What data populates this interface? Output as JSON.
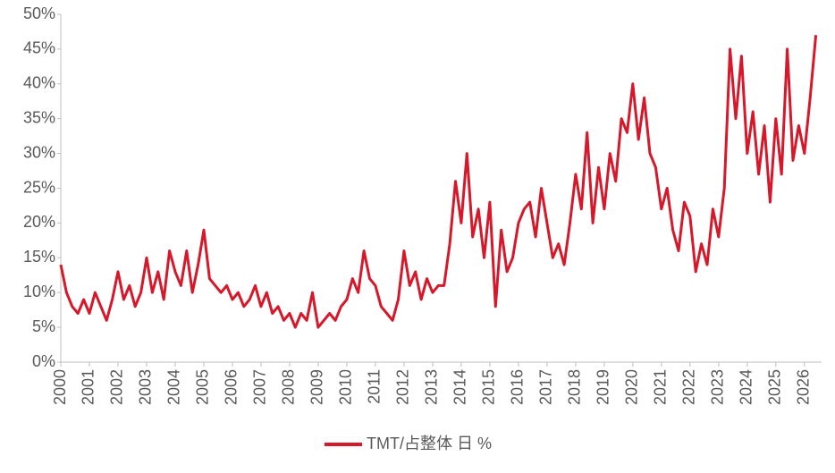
{
  "chart_data": {
    "type": "line",
    "x": [
      2000,
      2000.2,
      2000.4,
      2000.6,
      2000.8,
      2001,
      2001.2,
      2001.4,
      2001.6,
      2001.8,
      2002,
      2002.2,
      2002.4,
      2002.6,
      2002.8,
      2003,
      2003.2,
      2003.4,
      2003.6,
      2003.8,
      2004,
      2004.2,
      2004.4,
      2004.6,
      2004.8,
      2005,
      2005.2,
      2005.4,
      2005.6,
      2005.8,
      2006,
      2006.2,
      2006.4,
      2006.6,
      2006.8,
      2007,
      2007.2,
      2007.4,
      2007.6,
      2007.8,
      2008,
      2008.2,
      2008.4,
      2008.6,
      2008.8,
      2009,
      2009.2,
      2009.4,
      2009.6,
      2009.8,
      2010,
      2010.2,
      2010.4,
      2010.6,
      2010.8,
      2011,
      2011.2,
      2011.4,
      2011.6,
      2011.8,
      2012,
      2012.2,
      2012.4,
      2012.6,
      2012.8,
      2013,
      2013.2,
      2013.4,
      2013.6,
      2013.8,
      2014,
      2014.2,
      2014.4,
      2014.6,
      2014.8,
      2015,
      2015.2,
      2015.4,
      2015.6,
      2015.8,
      2016,
      2016.2,
      2016.4,
      2016.6,
      2016.8,
      2017,
      2017.2,
      2017.4,
      2017.6,
      2017.8,
      2018,
      2018.2,
      2018.4,
      2018.6,
      2018.8,
      2019,
      2019.2,
      2019.4,
      2019.6,
      2019.8,
      2020,
      2020.2,
      2020.4,
      2020.6,
      2020.8,
      2021,
      2021.2,
      2021.4,
      2021.6,
      2021.8,
      2022,
      2022.2,
      2022.4,
      2022.6,
      2022.8,
      2023,
      2023.2,
      2023.4,
      2023.6,
      2023.8,
      2024,
      2024.2,
      2024.4,
      2024.6,
      2024.8,
      2025,
      2025.2,
      2025.4,
      2025.6,
      2025.8,
      2026,
      2026.2,
      2026.4
    ],
    "series": [
      {
        "name": "TMT/占整体 日 %",
        "color": "#d7182a",
        "values": [
          14,
          10,
          8,
          7,
          9,
          7,
          10,
          8,
          6,
          9,
          13,
          9,
          11,
          8,
          10,
          15,
          10,
          13,
          9,
          16,
          13,
          11,
          16,
          10,
          14,
          19,
          12,
          11,
          10,
          11,
          9,
          10,
          8,
          9,
          11,
          8,
          10,
          7,
          8,
          6,
          7,
          5,
          7,
          6,
          10,
          5,
          6,
          7,
          6,
          8,
          9,
          12,
          10,
          16,
          12,
          11,
          8,
          7,
          6,
          9,
          16,
          11,
          13,
          9,
          12,
          10,
          11,
          11,
          17,
          26,
          20,
          30,
          18,
          22,
          15,
          23,
          8,
          19,
          13,
          15,
          20,
          22,
          23,
          18,
          25,
          20,
          15,
          17,
          14,
          20,
          27,
          22,
          33,
          20,
          28,
          22,
          30,
          26,
          35,
          33,
          40,
          32,
          38,
          30,
          28,
          22,
          25,
          19,
          16,
          23,
          21,
          13,
          17,
          14,
          22,
          18,
          25,
          45,
          35,
          44,
          30,
          36,
          27,
          34,
          23,
          35,
          27,
          45,
          29,
          34,
          30,
          38,
          47
        ]
      }
    ],
    "xlim": [
      2000,
      2026.6
    ],
    "xticks": [
      2000,
      2001,
      2002,
      2003,
      2004,
      2005,
      2006,
      2007,
      2008,
      2009,
      2010,
      2011,
      2012,
      2013,
      2014,
      2015,
      2016,
      2017,
      2018,
      2019,
      2020,
      2021,
      2022,
      2023,
      2024,
      2025,
      2026
    ],
    "ylim": [
      0,
      50
    ],
    "yticks": [
      {
        "value": 0,
        "label": "0%"
      },
      {
        "value": 5,
        "label": "5%"
      },
      {
        "value": 10,
        "label": "10%"
      },
      {
        "value": 15,
        "label": "15%"
      },
      {
        "value": 20,
        "label": "20%"
      },
      {
        "value": 25,
        "label": "25%"
      },
      {
        "value": 30,
        "label": "30%"
      },
      {
        "value": 35,
        "label": "35%"
      },
      {
        "value": 40,
        "label": "40%"
      },
      {
        "value": 45,
        "label": "45%"
      },
      {
        "value": 50,
        "label": "50%"
      }
    ],
    "grid": false
  }
}
